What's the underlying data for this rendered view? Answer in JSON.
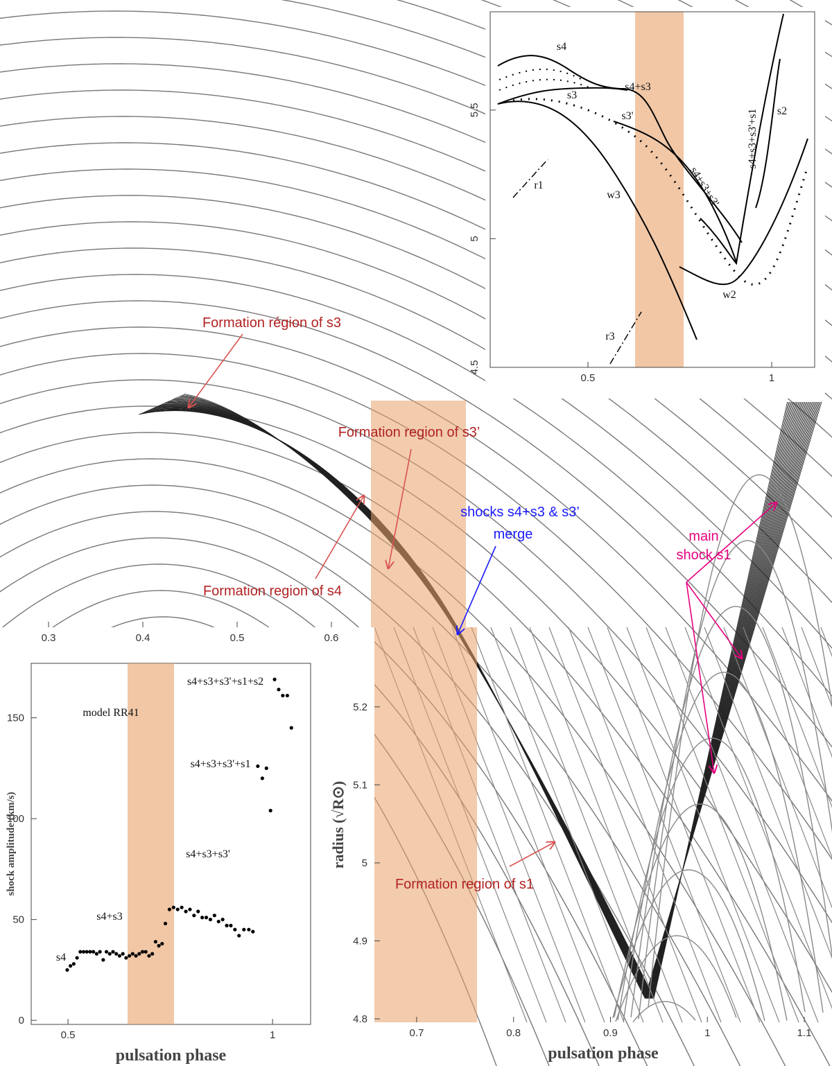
{
  "chart_data": [
    {
      "type": "line",
      "xlim": [
        0.2485,
        0.6456
      ],
      "xticks": [
        0.3,
        0.4,
        0.5,
        0.6
      ]
    },
    {
      "type": "line",
      "xlabel": "pulsation phase",
      "ylabel": "radius (√R⊙)",
      "xlim": [
        0.6564,
        1.1286
      ],
      "ylim": [
        4.7956,
        5.302
      ],
      "xticks": [
        0.7,
        0.8,
        0.9,
        1,
        1.1
      ],
      "yticks": [
        4.8,
        4.9,
        5,
        5.1,
        5.2
      ]
    },
    {
      "type": "line",
      "xlim": [
        0.234,
        1.117
      ],
      "ylim": [
        4.5,
        5.882
      ],
      "xticks": [
        0.5,
        1
      ],
      "yticks": [
        4.5,
        5,
        5.5
      ],
      "annotations": [
        "s4",
        "s3",
        "s4+s3",
        "s3'",
        "s4+s3+s3'",
        "s4+s3+s3'+s1",
        "s2",
        "r1",
        "w3",
        "w2",
        "r3"
      ]
    },
    {
      "type": "scatter",
      "xlabel": "pulsation phase",
      "ylabel": "shock amplitude (km/s)",
      "xlim": [
        0.41,
        1.093
      ],
      "ylim": [
        -2,
        177
      ],
      "xticks": [
        0.5,
        1
      ],
      "yticks": [
        0,
        50,
        100,
        150
      ],
      "color": "#000000",
      "annotations": [
        "model RR41",
        "s4",
        "s4+s3",
        "s4+s3+s3'",
        "s4+s3+s3'+s1",
        "s4+s3+s3'+s1+s2"
      ],
      "x": [
        0.498,
        0.506,
        0.514,
        0.522,
        0.53,
        0.538,
        0.546,
        0.554,
        0.562,
        0.57,
        0.578,
        0.586,
        0.594,
        0.602,
        0.61,
        0.618,
        0.626,
        0.634,
        0.642,
        0.65,
        0.658,
        0.666,
        0.674,
        0.682,
        0.69,
        0.698,
        0.706,
        0.714,
        0.722,
        0.73,
        0.738,
        0.748,
        0.758,
        0.768,
        0.778,
        0.788,
        0.798,
        0.808,
        0.818,
        0.828,
        0.838,
        0.848,
        0.858,
        0.868,
        0.878,
        0.888,
        0.898,
        0.908,
        0.918,
        0.93,
        0.942,
        0.952,
        0.964,
        0.975,
        0.985,
        0.995,
        1.005,
        1.015,
        1.025,
        1.036,
        1.046
      ],
      "y": [
        25,
        27,
        28,
        31,
        34,
        34,
        34,
        34,
        34,
        33,
        34,
        30,
        34,
        33,
        34,
        33,
        32,
        33,
        31,
        32,
        33,
        32,
        33,
        34,
        34,
        32,
        33,
        39,
        37,
        38,
        48,
        55,
        56,
        55,
        56,
        54,
        55,
        52,
        54,
        51,
        51,
        50,
        52,
        49,
        50,
        47,
        47,
        45,
        42,
        45,
        45,
        44,
        126,
        120,
        125,
        104,
        169,
        164,
        161,
        161,
        145
      ]
    }
  ],
  "annotations": [
    "Formation région of s3",
    "Formation region of s3’",
    "Formation region of s4",
    "shocks s4+s3 & s3’",
    "merge",
    "main",
    "shock s1",
    "Formation region of s1"
  ]
}
